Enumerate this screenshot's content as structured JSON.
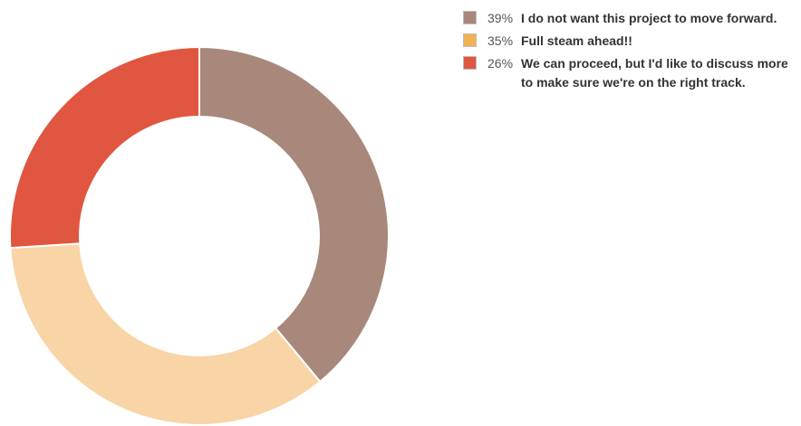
{
  "chart_data": {
    "type": "pie",
    "donut": true,
    "slices": [
      {
        "percent_label": "39%",
        "value": 39,
        "label": "I do not want this project to move forward.",
        "legend_color": "#a8887a",
        "slice_color": "#a8887a"
      },
      {
        "percent_label": "35%",
        "value": 35,
        "label": "Full steam ahead!!",
        "legend_color": "#f0b252",
        "slice_color": "#f8d4a6"
      },
      {
        "percent_label": "26%",
        "value": 26,
        "label": "We can proceed, but I'd like to discuss more to make sure we're on the right track.",
        "legend_color": "#e05641",
        "slice_color": "#e05641"
      }
    ],
    "legend_position": "top-right",
    "title": "",
    "show_slice_labels": false
  }
}
